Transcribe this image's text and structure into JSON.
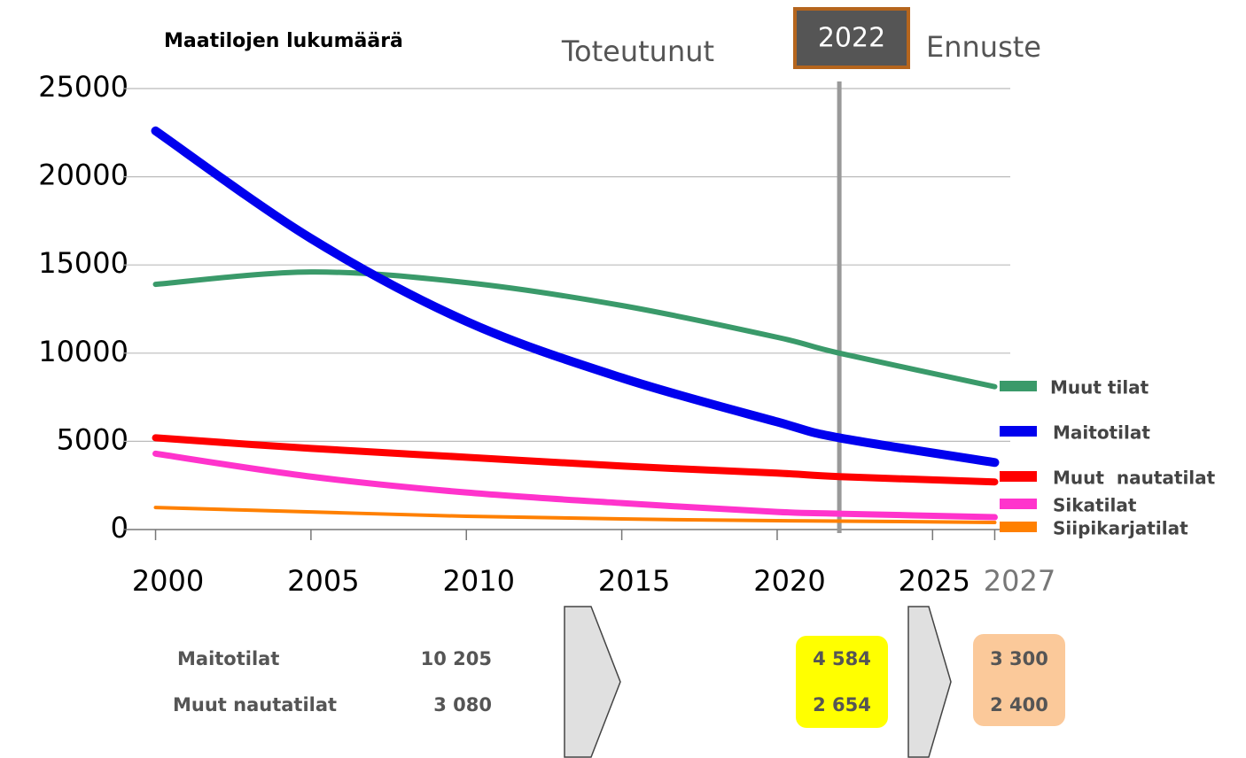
{
  "chart_data": {
    "type": "line",
    "title": "Maatilojen lukumäärä",
    "annotations": {
      "left": "Toteutunut",
      "year": 2022,
      "right": "Ennuste"
    },
    "x": [
      2000,
      2005,
      2010,
      2015,
      2020,
      2022,
      2027
    ],
    "series": [
      {
        "name": "Muut tilat",
        "color": "#3a9a6a",
        "values": [
          13900,
          14600,
          14000,
          12700,
          10900,
          10000,
          8100
        ]
      },
      {
        "name": "Maitotilat",
        "color": "#0000ee",
        "values": [
          22600,
          16500,
          11800,
          8600,
          6100,
          5200,
          3800
        ]
      },
      {
        "name": "Muut  nautatilat",
        "color": "#ff0000",
        "values": [
          5200,
          4600,
          4100,
          3600,
          3200,
          3000,
          2700
        ]
      },
      {
        "name": "Sikatilat",
        "color": "#ff33cc",
        "values": [
          4300,
          3000,
          2100,
          1500,
          1000,
          900,
          700
        ]
      },
      {
        "name": "Siipikarjatilat",
        "color": "#ff8000",
        "values": [
          1250,
          1000,
          750,
          600,
          500,
          480,
          400
        ]
      }
    ],
    "xlim": [
      1999.5,
      2027.5
    ],
    "xticks": [
      2000,
      2005,
      2010,
      2015,
      2020,
      2025,
      2027
    ],
    "ylim": [
      0,
      25000
    ],
    "yticks": [
      0,
      5000,
      10000,
      15000,
      20000,
      25000
    ],
    "grid": true,
    "legend": "right"
  },
  "table": {
    "rows": [
      [
        "Maitotilat",
        "10 205",
        "4 584",
        "3 300"
      ],
      [
        "Muut nautatilat",
        "3 080",
        "2 654",
        "2 400"
      ]
    ]
  }
}
